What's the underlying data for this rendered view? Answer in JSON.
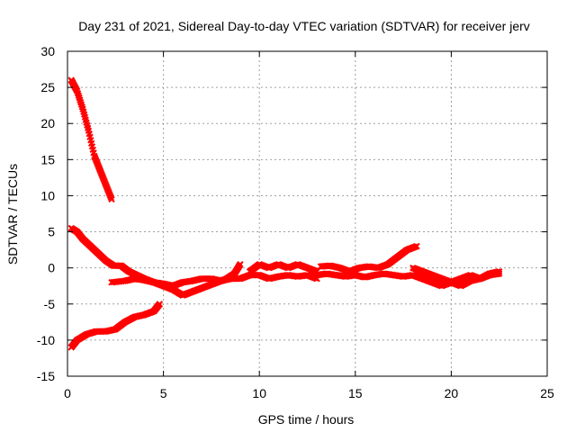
{
  "chart_data": {
    "type": "scatter",
    "title": "Day 231 of 2021, Sidereal Day-to-day VTEC variation (SDTVAR) for receiver jerv",
    "xlabel": "GPS time / hours",
    "ylabel": "SDTVAR / TECUs",
    "xlim": [
      0,
      25
    ],
    "ylim": [
      -15,
      30
    ],
    "xticks": [
      0,
      5,
      10,
      15,
      20,
      25
    ],
    "yticks": [
      -15,
      -10,
      -5,
      0,
      5,
      10,
      15,
      20,
      25,
      30
    ],
    "grid": true,
    "color": "#ff0000",
    "series": [
      {
        "name": "track-1",
        "x": [
          0.2,
          0.5,
          0.8,
          1.1,
          1.4,
          1.7,
          2.0,
          2.3
        ],
        "y": [
          26,
          24.5,
          22,
          19,
          15.5,
          13.5,
          11.5,
          9.5
        ]
      },
      {
        "name": "track-2",
        "x": [
          0.2,
          0.5,
          0.8,
          1.2,
          1.6,
          2.0,
          2.4,
          2.8,
          3.2,
          3.6,
          4.0,
          4.5,
          5.0,
          5.5,
          6.0,
          6.3,
          6.8,
          7.3,
          7.8,
          8.3,
          8.7,
          9.0
        ],
        "y": [
          5.5,
          5.0,
          4.0,
          3.0,
          2.0,
          1.0,
          0.3,
          0.3,
          -0.5,
          -1.0,
          -1.5,
          -2.0,
          -2.5,
          -3.0,
          -3.8,
          -3.5,
          -3.0,
          -2.5,
          -2.0,
          -1.5,
          -0.8,
          0.5
        ]
      },
      {
        "name": "track-3",
        "x": [
          2.3,
          3.0,
          3.5,
          4.0,
          4.5,
          5.0,
          5.5,
          6.0,
          6.5,
          7.0,
          7.5,
          8.0,
          8.5,
          9.0,
          9.5,
          10.0,
          10.5,
          11.0,
          11.5,
          12.0,
          12.5,
          13.0
        ],
        "y": [
          -2.0,
          -1.8,
          -1.5,
          -1.7,
          -2.0,
          -2.2,
          -2.5,
          -2.0,
          -1.8,
          -1.5,
          -1.5,
          -1.8,
          -1.5,
          -1.5,
          -1.0,
          -1.0,
          -1.5,
          -1.2,
          -1.0,
          -1.2,
          -1.0,
          -1.5
        ]
      },
      {
        "name": "track-4",
        "x": [
          9.5,
          10.0,
          10.5,
          11.0,
          11.5,
          12.0,
          12.5,
          13.0
        ],
        "y": [
          -0.5,
          0.5,
          0.0,
          0.5,
          0.0,
          0.5,
          0.0,
          -0.5
        ]
      },
      {
        "name": "track-5",
        "x": [
          13.2,
          13.7,
          14.2,
          14.7,
          15.2,
          15.7,
          16.2,
          16.7,
          17.2,
          17.7,
          18.2
        ],
        "y": [
          0.2,
          0.3,
          0.0,
          -0.5,
          0.0,
          0.2,
          0.0,
          0.5,
          1.5,
          2.5,
          3.0
        ]
      },
      {
        "name": "track-6",
        "x": [
          13.0,
          13.5,
          14.0,
          14.5,
          15.0,
          15.5,
          16.0,
          16.5,
          17.0,
          17.5,
          18.0,
          18.5,
          19.0,
          19.5,
          20.0,
          20.5,
          21.0,
          21.5,
          22.0,
          22.5
        ],
        "y": [
          -1.0,
          -0.8,
          -1.0,
          -1.2,
          -1.0,
          -1.3,
          -1.0,
          -0.8,
          -1.0,
          -1.2,
          -1.0,
          -1.5,
          -2.0,
          -2.5,
          -2.0,
          -1.5,
          -1.0,
          -1.5,
          -1.0,
          -0.8
        ]
      },
      {
        "name": "track-7",
        "x": [
          18.0,
          18.5,
          19.0,
          19.5,
          20.0,
          20.5,
          21.0,
          21.5,
          22.0,
          22.5
        ],
        "y": [
          0.0,
          -0.5,
          -1.0,
          -1.5,
          -2.0,
          -2.5,
          -1.8,
          -1.5,
          -0.8,
          -0.5
        ]
      },
      {
        "name": "track-8",
        "x": [
          0.2,
          0.5,
          1.0,
          1.5,
          2.0,
          2.5,
          3.0,
          3.5,
          4.0,
          4.5,
          4.8
        ],
        "y": [
          -11.0,
          -10.0,
          -9.2,
          -8.8,
          -8.8,
          -8.5,
          -7.5,
          -6.8,
          -6.5,
          -6.0,
          -5.0
        ]
      }
    ]
  }
}
